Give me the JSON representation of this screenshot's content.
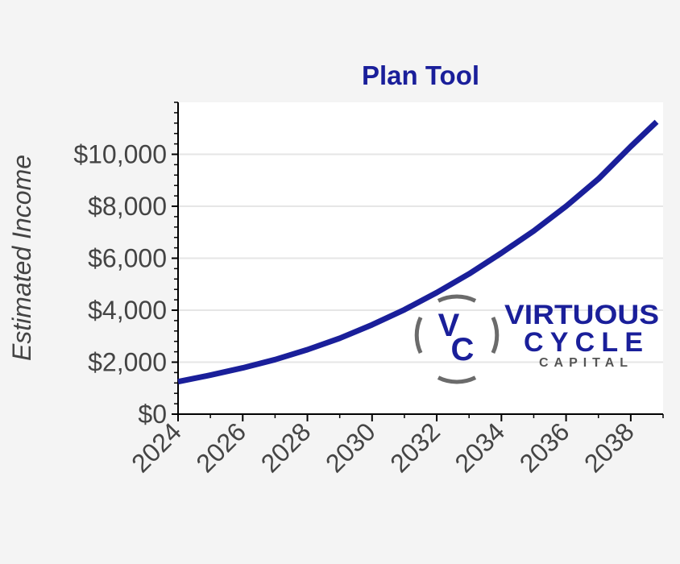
{
  "chart_data": {
    "type": "line",
    "title": "Plan Tool",
    "xlabel": "",
    "ylabel": "Estimated Income",
    "xlim": [
      2024,
      2039
    ],
    "ylim": [
      0,
      12000
    ],
    "x_ticks": [
      2024,
      2026,
      2028,
      2030,
      2032,
      2034,
      2036,
      2038
    ],
    "y_ticks": [
      0,
      2000,
      4000,
      6000,
      8000,
      10000
    ],
    "y_tick_labels": [
      "$0",
      "$2,000",
      "$4,000",
      "$6,000",
      "$8,000",
      "$10,000"
    ],
    "grid": true,
    "series": [
      {
        "color": "#1a1f9a",
        "x": [
          2024,
          2025,
          2026,
          2027,
          2028,
          2029,
          2030,
          2031,
          2032,
          2033,
          2034,
          2035,
          2036,
          2037,
          2038,
          2038.8
        ],
        "y": [
          1250,
          1500,
          1780,
          2100,
          2480,
          2920,
          3440,
          4020,
          4680,
          5400,
          6200,
          7050,
          8000,
          9050,
          10300,
          11250
        ]
      }
    ]
  },
  "logo": {
    "monogram_v": "V",
    "monogram_c": "C",
    "line1": "VIRTUOUS",
    "line2": "CYCLE",
    "line3": "CAPITAL"
  },
  "colors": {
    "line": "#1a1f9a",
    "title": "#1a1f9a",
    "background": "#f4f4f4",
    "plot_background": "#ffffff",
    "grid": "#e6e6e6",
    "logo_ring": "#6b6b6b"
  }
}
